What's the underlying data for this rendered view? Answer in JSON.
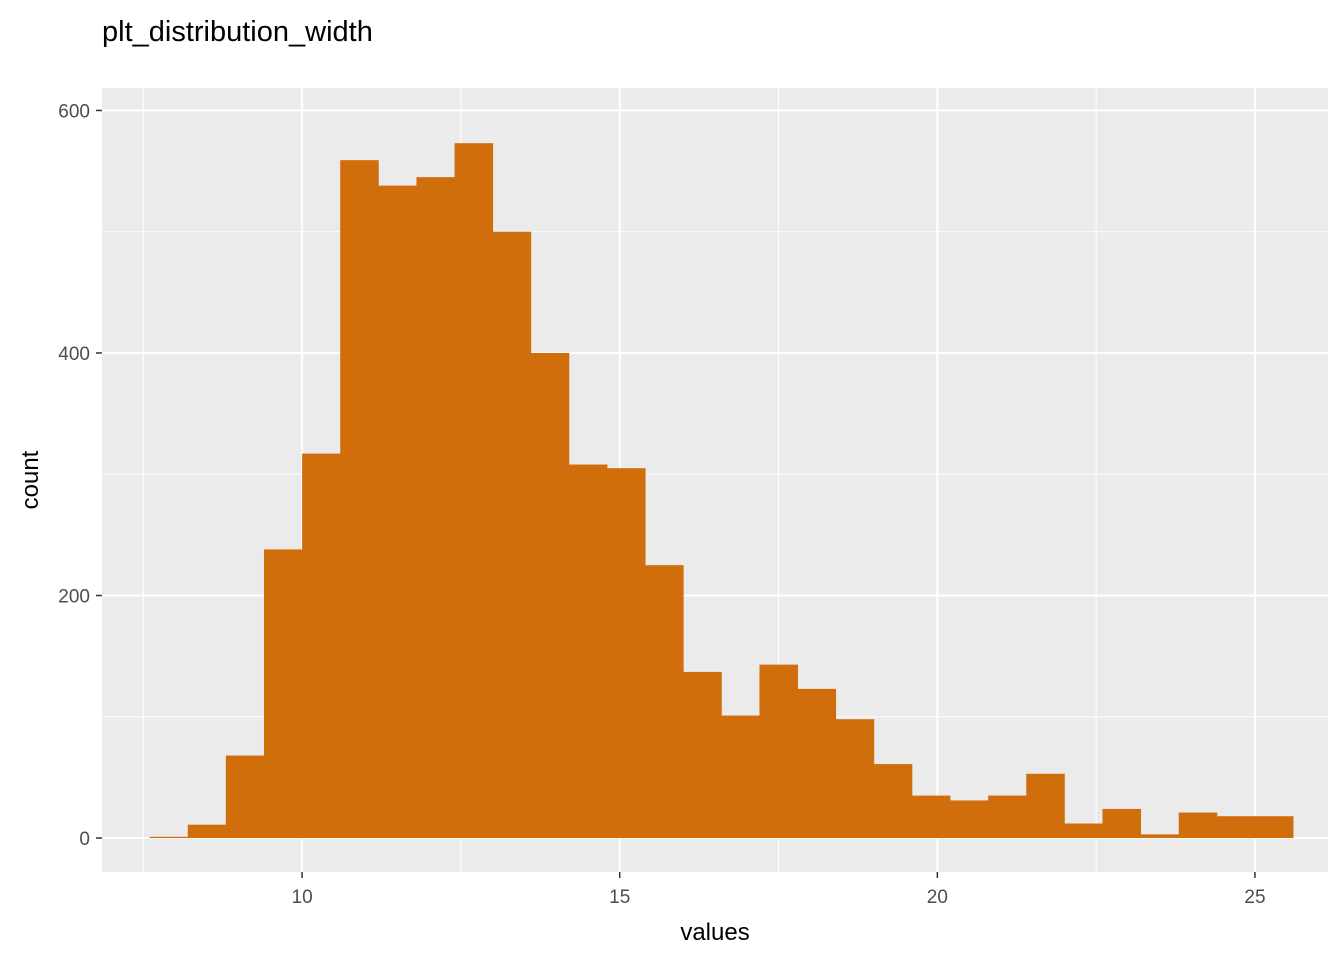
{
  "chart_data": {
    "type": "bar",
    "title": "plt_distribution_width",
    "xlabel": "values",
    "ylabel": "count",
    "xlim": [
      6.85,
      26.15
    ],
    "ylim": [
      -28,
      600
    ],
    "x_ticks": [
      10,
      15,
      20,
      25
    ],
    "y_ticks": [
      0,
      200,
      400,
      600
    ],
    "x_tick_labels": [
      "10",
      "15",
      "20",
      "25"
    ],
    "y_tick_labels": [
      "0",
      "200",
      "400",
      "600"
    ],
    "bin_width": 0.6,
    "bins": [
      {
        "x0": 7.6,
        "x1": 8.2,
        "count": 1
      },
      {
        "x0": 8.2,
        "x1": 8.8,
        "count": 11
      },
      {
        "x0": 8.8,
        "x1": 9.4,
        "count": 68
      },
      {
        "x0": 9.4,
        "x1": 10.0,
        "count": 238
      },
      {
        "x0": 10.0,
        "x1": 10.6,
        "count": 317
      },
      {
        "x0": 10.6,
        "x1": 11.2,
        "count": 559
      },
      {
        "x0": 11.2,
        "x1": 11.8,
        "count": 538
      },
      {
        "x0": 11.8,
        "x1": 12.4,
        "count": 545
      },
      {
        "x0": 12.4,
        "x1": 13.0,
        "count": 573
      },
      {
        "x0": 13.0,
        "x1": 13.6,
        "count": 500
      },
      {
        "x0": 13.6,
        "x1": 14.2,
        "count": 400
      },
      {
        "x0": 14.2,
        "x1": 14.8,
        "count": 308
      },
      {
        "x0": 14.8,
        "x1": 15.4,
        "count": 305
      },
      {
        "x0": 15.4,
        "x1": 16.0,
        "count": 225
      },
      {
        "x0": 16.0,
        "x1": 16.6,
        "count": 137
      },
      {
        "x0": 16.6,
        "x1": 17.2,
        "count": 101
      },
      {
        "x0": 17.2,
        "x1": 17.8,
        "count": 143
      },
      {
        "x0": 17.8,
        "x1": 18.4,
        "count": 123
      },
      {
        "x0": 18.4,
        "x1": 19.0,
        "count": 98
      },
      {
        "x0": 19.0,
        "x1": 19.6,
        "count": 61
      },
      {
        "x0": 19.6,
        "x1": 20.2,
        "count": 35
      },
      {
        "x0": 20.2,
        "x1": 20.8,
        "count": 31
      },
      {
        "x0": 20.8,
        "x1": 21.4,
        "count": 35
      },
      {
        "x0": 21.4,
        "x1": 22.0,
        "count": 53
      },
      {
        "x0": 22.0,
        "x1": 22.6,
        "count": 12
      },
      {
        "x0": 22.6,
        "x1": 23.2,
        "count": 24
      },
      {
        "x0": 23.2,
        "x1": 23.8,
        "count": 3
      },
      {
        "x0": 23.8,
        "x1": 24.4,
        "count": 21
      },
      {
        "x0": 24.4,
        "x1": 25.0,
        "count": 18
      },
      {
        "x0": 25.0,
        "x1": 25.6,
        "count": 18
      }
    ],
    "grid": true,
    "colors": {
      "bar": "#cf6e0b",
      "panel": "#ebebeb",
      "grid": "#ffffff"
    }
  }
}
